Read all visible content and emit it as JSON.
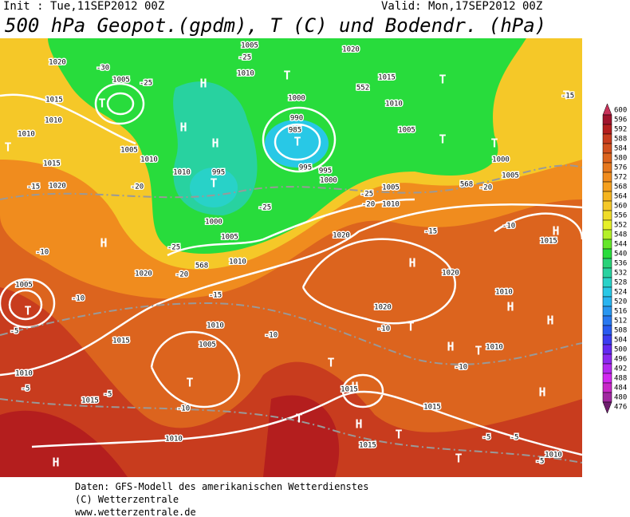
{
  "header": {
    "init": "Init : Tue,11SEP2012 00Z",
    "valid": "Valid: Mon,17SEP2012 00Z",
    "title": "500 hPa Geopot.(gpdm), T (C) und Bodendr. (hPa)"
  },
  "colorbar": {
    "levels": [
      600,
      596,
      592,
      588,
      584,
      580,
      576,
      572,
      568,
      564,
      560,
      556,
      552,
      548,
      544,
      540,
      536,
      532,
      528,
      524,
      520,
      516,
      512,
      508,
      504,
      500,
      496,
      492,
      488,
      484,
      480,
      476
    ],
    "colors": [
      "#c8325a",
      "#a0142d",
      "#b41e1e",
      "#c83c1e",
      "#d2501e",
      "#dc641e",
      "#e6781e",
      "#f08c1e",
      "#f5a01e",
      "#f5b41e",
      "#f5c828",
      "#f0dc28",
      "#e6f028",
      "#b4f028",
      "#64e628",
      "#28dc3c",
      "#28d278",
      "#28d2a0",
      "#28d2c8",
      "#28c8e6",
      "#28b4f0",
      "#2896f0",
      "#2878f0",
      "#285af0",
      "#3c3cf0",
      "#6428f0",
      "#8c28f0",
      "#b428f0",
      "#d228f0",
      "#c828c8",
      "#a028a0",
      "#6e1e6e"
    ]
  },
  "map": {
    "labels": [
      "H",
      "H",
      "H",
      "H",
      "H",
      "H",
      "H",
      "H",
      "H",
      "H",
      "H",
      "H",
      "H",
      "T",
      "T",
      "T",
      "T",
      "T",
      "T",
      "T",
      "T",
      "T",
      "T",
      "T",
      "T",
      "T",
      "T",
      "T",
      "T",
      "T",
      "1020",
      "1005",
      "1015",
      "1010",
      "1010",
      "1015",
      "1005",
      "1010",
      "1020",
      "1005",
      "1010",
      "1000",
      "990",
      "985",
      "995",
      "995",
      "1000",
      "995",
      "1010",
      "1000",
      "1005",
      "1010",
      "1020",
      "1020",
      "1010",
      "1005",
      "1005",
      "1010",
      "1015",
      "1020",
      "1000",
      "1005",
      "1020",
      "1020",
      "1010",
      "1010",
      "1010",
      "1005",
      "1015",
      "1015",
      "1010",
      "1010",
      "1015",
      "1015",
      "1015",
      "1010",
      "1015",
      "1005",
      "-30",
      "-25",
      "-25",
      "-25",
      "-25",
      "-20",
      "-20",
      "-15",
      "-15",
      "-15",
      "-15",
      "-10",
      "-10",
      "-10",
      "-10",
      "-10",
      "-10",
      "-10",
      "-5",
      "-5",
      "-5",
      "-5",
      "-5",
      "-5",
      "-20",
      "-20",
      "-25",
      "552",
      "568",
      "568"
    ]
  },
  "footer": {
    "lines": [
      "Daten: GFS-Modell des amerikanischen Wetterdienstes",
      "(C) Wetterzentrale",
      "www.wetterzentrale.de"
    ]
  }
}
